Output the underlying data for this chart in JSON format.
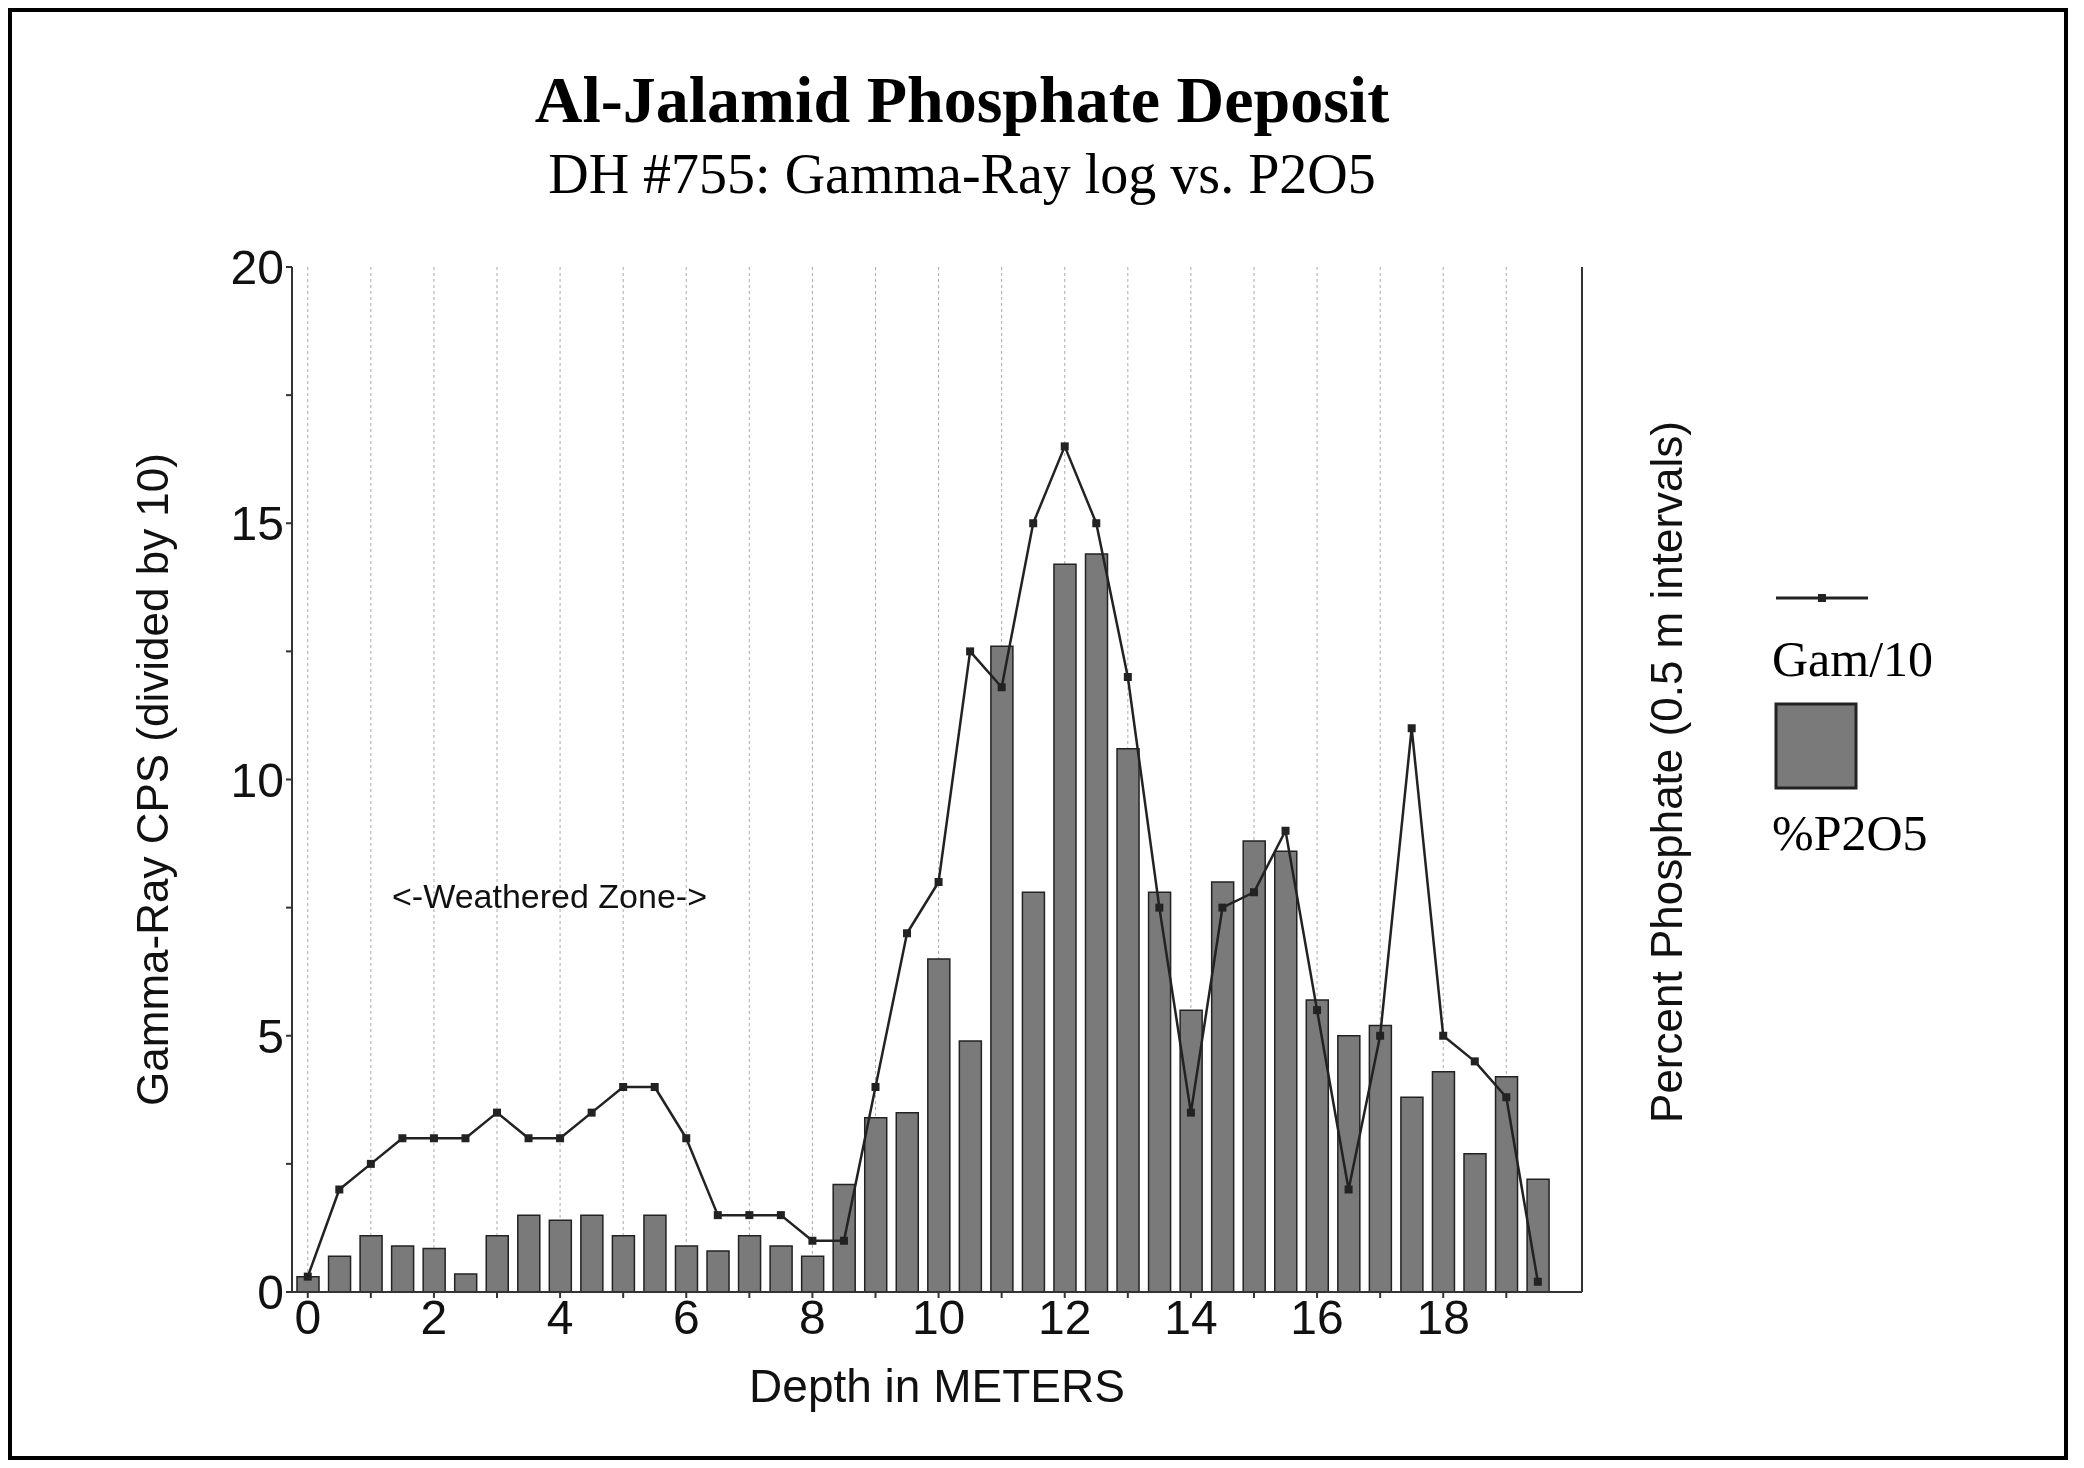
{
  "chart_data": {
    "type": "bar",
    "title": "Al-Jalamid Phosphate Deposit",
    "subtitle": "DH #755: Gamma-Ray log vs. P2O5",
    "xlabel": "Depth in METERS",
    "ylabel": "Gamma-Ray CPS (divided by 10)",
    "y2label": "Percent Phosphate (0.5 m intervals)",
    "x": [
      0,
      0.5,
      1,
      1.5,
      2,
      2.5,
      3,
      3.5,
      4,
      4.5,
      5,
      5.5,
      6,
      6.5,
      7,
      7.5,
      8,
      8.5,
      9,
      9.5,
      10,
      10.5,
      11,
      11.5,
      12,
      12.5,
      13,
      13.5,
      14,
      14.5,
      15,
      15.5,
      16,
      16.5,
      17,
      17.5,
      18,
      18.5,
      19,
      19.5
    ],
    "series": [
      {
        "name": "Gam/10",
        "type": "line",
        "color": "#222222",
        "values": [
          0.3,
          2.0,
          2.5,
          3.0,
          3.0,
          3.0,
          3.5,
          3.0,
          3.0,
          3.5,
          4.0,
          4.0,
          3.0,
          1.5,
          1.5,
          1.5,
          1.0,
          1.0,
          4.0,
          7.0,
          8.0,
          12.5,
          11.8,
          15.0,
          16.5,
          15.0,
          12.0,
          7.5,
          3.5,
          7.5,
          7.8,
          9.0,
          5.5,
          2.0,
          5.0,
          11.0,
          5.0,
          4.5,
          3.8,
          0.2
        ]
      },
      {
        "name": "%P2O5",
        "color": "#7a7a7a",
        "values": [
          0.3,
          0.7,
          1.1,
          0.9,
          0.85,
          0.35,
          1.1,
          1.5,
          1.4,
          1.5,
          1.1,
          1.5,
          0.9,
          0.8,
          1.1,
          0.9,
          0.7,
          2.1,
          3.4,
          3.5,
          6.5,
          4.9,
          12.6,
          7.8,
          14.2,
          14.4,
          10.6,
          7.8,
          5.5,
          8.0,
          8.8,
          8.6,
          5.7,
          5.0,
          5.2,
          3.8,
          4.3,
          2.7,
          4.2,
          2.2
        ]
      }
    ],
    "xlim": [
      -0.25,
      20.2
    ],
    "xticks": [
      0,
      {
        "value": 1,
        "label": null
      },
      2,
      {
        "value": 3,
        "label": null
      },
      4,
      {
        "value": 5,
        "label": null
      },
      6,
      {
        "value": 7,
        "label": null
      },
      8,
      {
        "value": 9,
        "label": null
      },
      10,
      {
        "value": 11,
        "label": null
      },
      12,
      {
        "value": 13,
        "label": null
      },
      14,
      {
        "value": 15,
        "label": null
      },
      16,
      {
        "value": 17,
        "label": null
      },
      18,
      {
        "value": 19,
        "label": null
      }
    ],
    "ylim": [
      0,
      20
    ],
    "yticks": [
      0,
      {
        "value": 2.5,
        "label": null
      },
      5,
      {
        "value": 7.5,
        "label": null
      },
      10,
      {
        "value": 12.5,
        "label": null
      },
      15,
      {
        "value": 17.5,
        "label": null
      },
      20
    ],
    "grid": true,
    "legend": "right",
    "marker": "square",
    "annotations": [
      "<-Weathered Zone->"
    ]
  }
}
